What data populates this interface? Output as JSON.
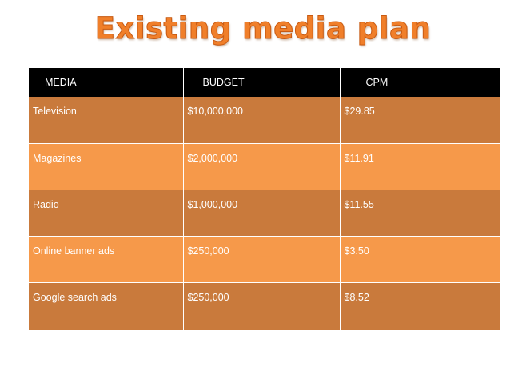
{
  "title": "Existing media plan",
  "table": {
    "headers": [
      "MEDIA",
      "BUDGET",
      "CPM"
    ],
    "rows": [
      {
        "media": "Television",
        "budget": " $10,000,000",
        "cpm": "$29.85"
      },
      {
        "media": "Magazines",
        "budget": "$2,000,000",
        "cpm": "$11.91"
      },
      {
        "media": "Radio",
        "budget": "$1,000,000",
        "cpm": "$11.55"
      },
      {
        "media": "Online banner  ads",
        "budget": "$250,000",
        "cpm": "$3.50"
      },
      {
        "media": "Google search ads",
        "budget": "$250,000",
        "cpm": "$8.52"
      }
    ]
  },
  "colors": {
    "title": "#f07f2a",
    "header_bg": "#000000",
    "row_dark": "#c97a3c",
    "row_light": "#f6994a",
    "text": "#ffffff"
  }
}
